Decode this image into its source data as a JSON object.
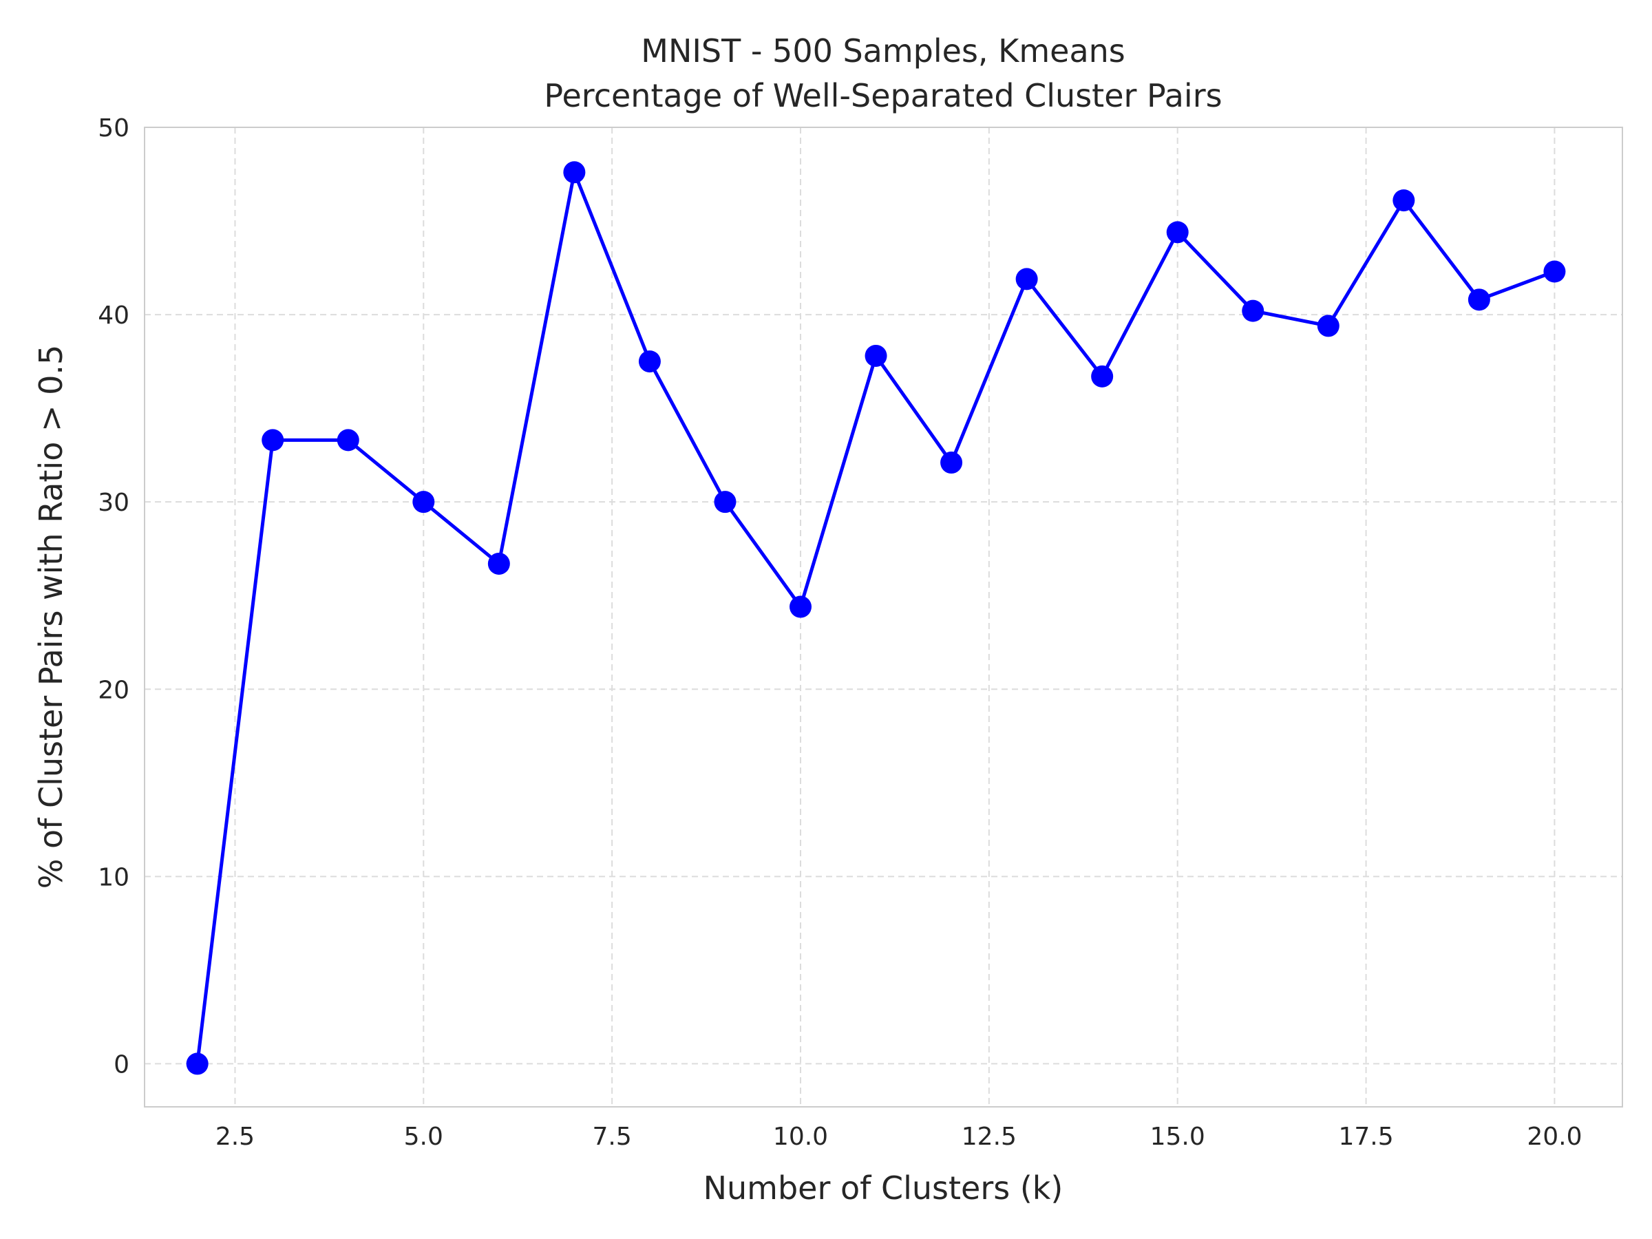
{
  "chart_data": {
    "type": "line",
    "title": "MNIST - 500 Samples, Kmeans",
    "subtitle": "Percentage of Well-Separated Cluster Pairs",
    "xlabel": "Number of Clusters (k)",
    "ylabel": "% of Cluster Pairs with Ratio > 0.5",
    "xlim": [
      1.3,
      20.9
    ],
    "ylim": [
      -2.3,
      50
    ],
    "xticks": [
      2.5,
      5.0,
      7.5,
      10.0,
      12.5,
      15.0,
      17.5,
      20.0
    ],
    "xtick_labels": [
      "2.5",
      "5.0",
      "7.5",
      "10.0",
      "12.5",
      "15.0",
      "17.5",
      "20.0"
    ],
    "yticks": [
      0,
      10,
      20,
      30,
      40,
      50
    ],
    "ytick_labels": [
      "0",
      "10",
      "20",
      "30",
      "40",
      "50"
    ],
    "grid": true,
    "grid_style": "dashed",
    "line_color": "#0000ff",
    "series": [
      {
        "x": [
          2,
          3,
          4,
          5,
          6,
          7,
          8,
          9,
          10,
          11,
          12,
          13,
          14,
          15,
          16,
          17,
          18,
          19,
          20
        ],
        "values": [
          0.0,
          33.3,
          33.3,
          30.0,
          26.7,
          47.6,
          37.5,
          30.0,
          24.4,
          37.8,
          32.1,
          41.9,
          36.7,
          44.4,
          40.2,
          39.4,
          46.1,
          40.8,
          42.3
        ]
      }
    ]
  }
}
